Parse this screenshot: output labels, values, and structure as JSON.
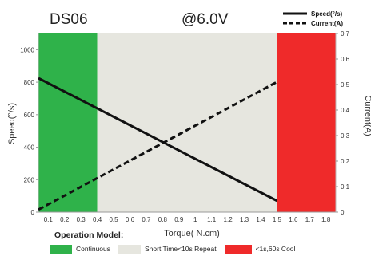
{
  "chart_data": {
    "type": "line",
    "title": "DS06",
    "subtitle": "@6.0V",
    "xlabel": "Torque( N.cm)",
    "ylabel_left": "Speed(°/s)",
    "ylabel_right": "Current(A)",
    "x_ticks": [
      "0.1",
      "0.2",
      "0.3",
      "0.4",
      "0.5",
      "0.6",
      "0.7",
      "0.8",
      "0.9",
      "1",
      "1.1",
      "1.2",
      "1.3",
      "1.4",
      "1.5",
      "1.6",
      "1.7",
      "1.8"
    ],
    "y_left_ticks": [
      "0",
      "200",
      "400",
      "600",
      "800",
      "1000"
    ],
    "y_right_ticks": [
      "0",
      "0.1",
      "0.2",
      "0.3",
      "0.4",
      "0.5",
      "0.6",
      "0.7"
    ],
    "xlim": [
      0.04,
      1.86
    ],
    "ylim_left": [
      0,
      1100
    ],
    "ylim_right": [
      0,
      0.7
    ],
    "series": [
      {
        "name": "Speed(°/s)",
        "axis": "left",
        "style": "solid",
        "x": [
          0.04,
          1.5
        ],
        "y": [
          825,
          70
        ]
      },
      {
        "name": "Current(A)",
        "axis": "right",
        "style": "dashed",
        "x": [
          0.04,
          1.5
        ],
        "y": [
          0.01,
          0.51
        ]
      }
    ],
    "regions": [
      {
        "label": "Continuous",
        "from": 0.04,
        "to": 0.4,
        "color": "#2fb24a"
      },
      {
        "label": "Short Time<10s Repeat",
        "from": 0.4,
        "to": 1.5,
        "color": "#e6e6df"
      },
      {
        "label": "<1s,60s Cool",
        "from": 1.5,
        "to": 1.86,
        "color": "#ef2a2a"
      }
    ],
    "legend_title": "Operation Model:",
    "legend_placement": "top-right",
    "grid": false
  }
}
